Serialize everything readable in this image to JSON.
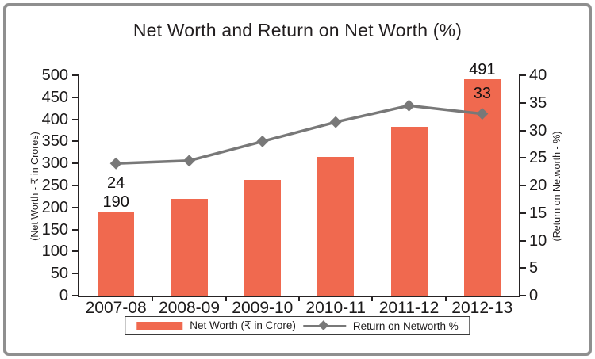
{
  "chart_data": {
    "type": "bar+line combo",
    "title": "Net Worth and Return on Net Worth (%)",
    "categories": [
      "2007-08",
      "2008-09",
      "2009-10",
      "2010-11",
      "2011-12",
      "2012-13"
    ],
    "series": [
      {
        "name": "Net Worth (₹ in Crore)",
        "type": "bar",
        "axis": "left",
        "color": "#f0694f",
        "values": [
          190,
          220,
          262,
          315,
          383,
          491
        ],
        "labels": [
          "190",
          "",
          "",
          "",
          "",
          "491"
        ]
      },
      {
        "name": "Return on Networth %",
        "type": "line",
        "axis": "right",
        "color": "#787878",
        "marker": "diamond",
        "values": [
          24,
          24.5,
          28,
          31.5,
          34.5,
          33
        ],
        "labels": [
          "24",
          "",
          "",
          "",
          "",
          "33"
        ]
      }
    ],
    "left_axis": {
      "label": "(Net Worth - ₹ in Crores)",
      "min": 0,
      "max": 500,
      "step": 50
    },
    "right_axis": {
      "label": "(Return on Networth - %)",
      "min": 0,
      "max": 40,
      "step": 5
    },
    "legend_position": "bottom",
    "grid": "off"
  },
  "colors": {
    "bar": "#f0694f",
    "line": "#787878",
    "axis": "#262324",
    "text": "#1c1a1a",
    "frame_border": "#8f8f8f",
    "background": "#ffffff"
  }
}
